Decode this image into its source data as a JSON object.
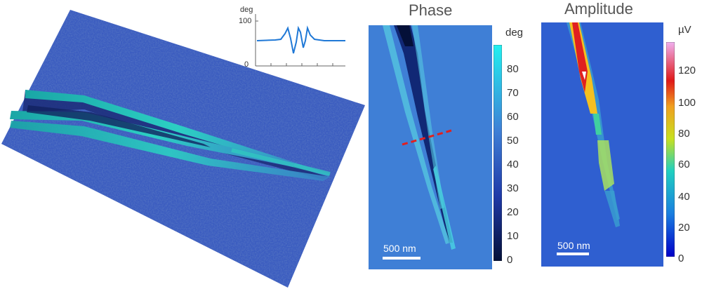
{
  "inset_profile": {
    "unit": "deg",
    "y_ticks": [
      "100",
      "0"
    ],
    "line_color": "#1f78d6"
  },
  "phase_map": {
    "title": "Phase",
    "unit": "deg",
    "colorbar_ticks": [
      "80",
      "70",
      "60",
      "50",
      "40",
      "30",
      "20",
      "10",
      "0"
    ],
    "scale_bar": "500 nm",
    "profile_line_color": "#e02020"
  },
  "amplitude_map": {
    "title": "Amplitude",
    "unit": "µV",
    "colorbar_ticks": [
      "120",
      "100",
      "80",
      "60",
      "40",
      "20",
      "0"
    ],
    "scale_bar": "500 nm"
  },
  "colors": {
    "substrate_blue": "#3d5fc4",
    "crack_cyan": "#27c9c9"
  }
}
